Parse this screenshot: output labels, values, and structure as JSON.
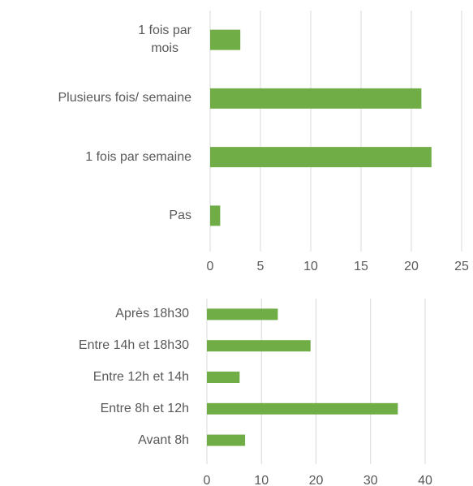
{
  "chart_data": [
    {
      "type": "bar",
      "orientation": "horizontal",
      "categories": [
        "1 fois par\nmois",
        "Plusieurs fois/ semaine",
        "1 fois par semaine",
        "Pas"
      ],
      "values": [
        3,
        21,
        22,
        1
      ],
      "color": "#70ad47",
      "xlim": [
        0,
        25
      ],
      "xticks": [
        0,
        5,
        10,
        15,
        20,
        25
      ],
      "grid": true
    },
    {
      "type": "bar",
      "orientation": "horizontal",
      "categories": [
        "Après 18h30",
        "Entre 14h et 18h30",
        "Entre 12h et 14h",
        "Entre 8h et 12h",
        "Avant 8h"
      ],
      "values": [
        13,
        19,
        6,
        35,
        7
      ],
      "color": "#70ad47",
      "xlim": [
        0,
        40
      ],
      "xticks": [
        0,
        10,
        20,
        30,
        40
      ],
      "grid": true
    }
  ]
}
